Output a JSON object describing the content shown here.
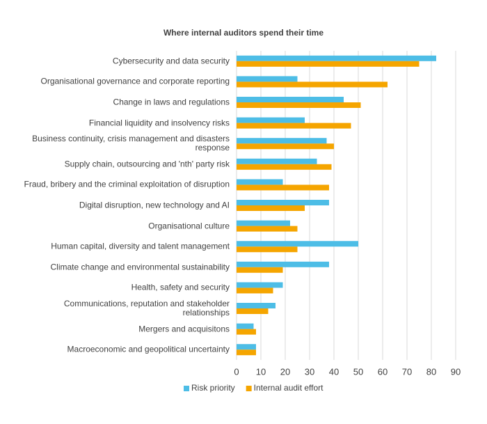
{
  "chart_data": {
    "type": "hbar",
    "title": "Where internal auditors spend their time",
    "categories": [
      "Cybersecurity and data security",
      "Organisational governance and corporate reporting",
      "Change in laws and regulations",
      "Financial liquidity and insolvency risks",
      "Business continuity, crisis management and disasters response",
      "Supply chain, outsourcing and 'nth' party risk",
      "Fraud, bribery and the criminal exploitation of disruption",
      "Digital disruption, new technology and AI",
      "Organisational culture",
      "Human capital, diversity and talent management",
      "Climate change and environmental sustainability",
      "Health, safety and security",
      "Communications, reputation and stakeholder relationships",
      "Mergers and acquisitons",
      "Macroeconomic and geopolitical uncertainty"
    ],
    "series": [
      {
        "name": "Risk priority",
        "color": "#4dbde6",
        "values": [
          82,
          25,
          44,
          28,
          37,
          33,
          19,
          38,
          22,
          50,
          38,
          19,
          16,
          7,
          8
        ]
      },
      {
        "name": "Internal audit effort",
        "color": "#f5a500",
        "values": [
          75,
          62,
          51,
          47,
          40,
          39,
          38,
          28,
          25,
          25,
          19,
          15,
          13,
          8,
          8
        ]
      }
    ],
    "xlim": [
      0,
      90
    ],
    "xticks": [
      0,
      10,
      20,
      30,
      40,
      50,
      60,
      70,
      80,
      90
    ],
    "grid": true,
    "legend": "bottom"
  }
}
